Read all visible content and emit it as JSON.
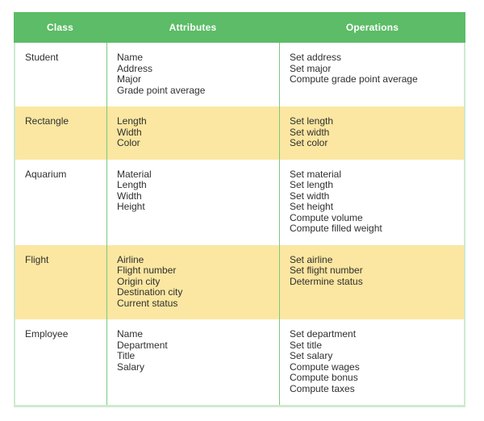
{
  "chart_data": {
    "type": "table",
    "columns": [
      "Class",
      "Attributes",
      "Operations"
    ],
    "rows": [
      {
        "class": "Student",
        "attributes": [
          "Name",
          "Address",
          "Major",
          "Grade point average"
        ],
        "operations": [
          "Set address",
          "Set major",
          "Compute grade point average"
        ],
        "highlighted": false
      },
      {
        "class": "Rectangle",
        "attributes": [
          "Length",
          "Width",
          "Color"
        ],
        "operations": [
          "Set length",
          "Set width",
          "Set color"
        ],
        "highlighted": true
      },
      {
        "class": "Aquarium",
        "attributes": [
          "Material",
          "Length",
          "Width",
          "Height"
        ],
        "operations": [
          "Set material",
          "Set length",
          "Set width",
          "Set height",
          "Compute volume",
          "Compute filled weight"
        ],
        "highlighted": false
      },
      {
        "class": "Flight",
        "attributes": [
          "Airline",
          "Flight number",
          "Origin city",
          "Destination city",
          "Current status"
        ],
        "operations": [
          "Set airline",
          "Set flight number",
          "Determine status"
        ],
        "highlighted": true
      },
      {
        "class": "Employee",
        "attributes": [
          "Name",
          "Department",
          "Title",
          "Salary"
        ],
        "operations": [
          "Set department",
          "Set title",
          "Set salary",
          "Compute wages",
          "Compute bonus",
          "Compute taxes"
        ],
        "highlighted": false
      }
    ]
  },
  "colors": {
    "header_bg": "#5cbc67",
    "header_text": "#ffffff",
    "row_highlight_bg": "#fbe7a1",
    "row_default_bg": "#ffffff",
    "outer_border": "#cfe9cf",
    "column_divider": "#7bc77f",
    "body_text": "#2f2f2f"
  }
}
